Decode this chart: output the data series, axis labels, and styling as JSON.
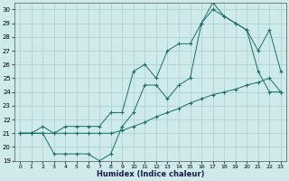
{
  "xlabel": "Humidex (Indice chaleur)",
  "bg_color": "#ceeaea",
  "grid_color": "#aacece",
  "line_color": "#1a6e6a",
  "xlim": [
    -0.5,
    23.5
  ],
  "ylim": [
    19,
    30.5
  ],
  "xticks": [
    0,
    1,
    2,
    3,
    4,
    5,
    6,
    7,
    8,
    9,
    10,
    11,
    12,
    13,
    14,
    15,
    16,
    17,
    18,
    19,
    20,
    21,
    22,
    23
  ],
  "yticks": [
    19,
    20,
    21,
    22,
    23,
    24,
    25,
    26,
    27,
    28,
    29,
    30
  ],
  "line1_x": [
    0,
    1,
    2,
    3,
    4,
    5,
    6,
    7,
    8,
    9,
    10,
    11,
    12,
    13,
    14,
    15,
    16,
    17,
    18,
    19,
    20,
    21,
    22,
    23
  ],
  "line1_y": [
    21.0,
    21.0,
    21.0,
    21.0,
    21.0,
    21.0,
    21.0,
    21.0,
    21.0,
    21.2,
    21.5,
    21.8,
    22.2,
    22.5,
    22.8,
    23.2,
    23.5,
    23.8,
    24.0,
    24.2,
    24.5,
    24.7,
    25.0,
    24.0
  ],
  "line2_x": [
    0,
    1,
    2,
    3,
    4,
    5,
    6,
    7,
    8,
    9,
    10,
    11,
    12,
    13,
    14,
    15,
    16,
    17,
    18,
    19,
    20,
    21,
    22,
    23
  ],
  "line2_y": [
    21.0,
    21.0,
    21.0,
    19.5,
    19.5,
    19.5,
    19.5,
    19.0,
    19.5,
    21.5,
    22.5,
    24.5,
    24.5,
    23.5,
    24.5,
    25.0,
    29.0,
    30.0,
    29.5,
    29.0,
    28.5,
    25.5,
    24.0,
    24.0
  ],
  "line3_x": [
    0,
    1,
    2,
    3,
    4,
    5,
    6,
    7,
    8,
    9,
    10,
    11,
    12,
    13,
    14,
    15,
    16,
    17,
    18,
    19,
    20,
    21,
    22,
    23
  ],
  "line3_y": [
    21.0,
    21.0,
    21.5,
    21.0,
    21.5,
    21.5,
    21.5,
    21.5,
    22.5,
    22.5,
    25.5,
    26.0,
    25.0,
    27.0,
    27.5,
    27.5,
    29.0,
    30.5,
    29.5,
    29.0,
    28.5,
    27.0,
    28.5,
    25.5
  ]
}
